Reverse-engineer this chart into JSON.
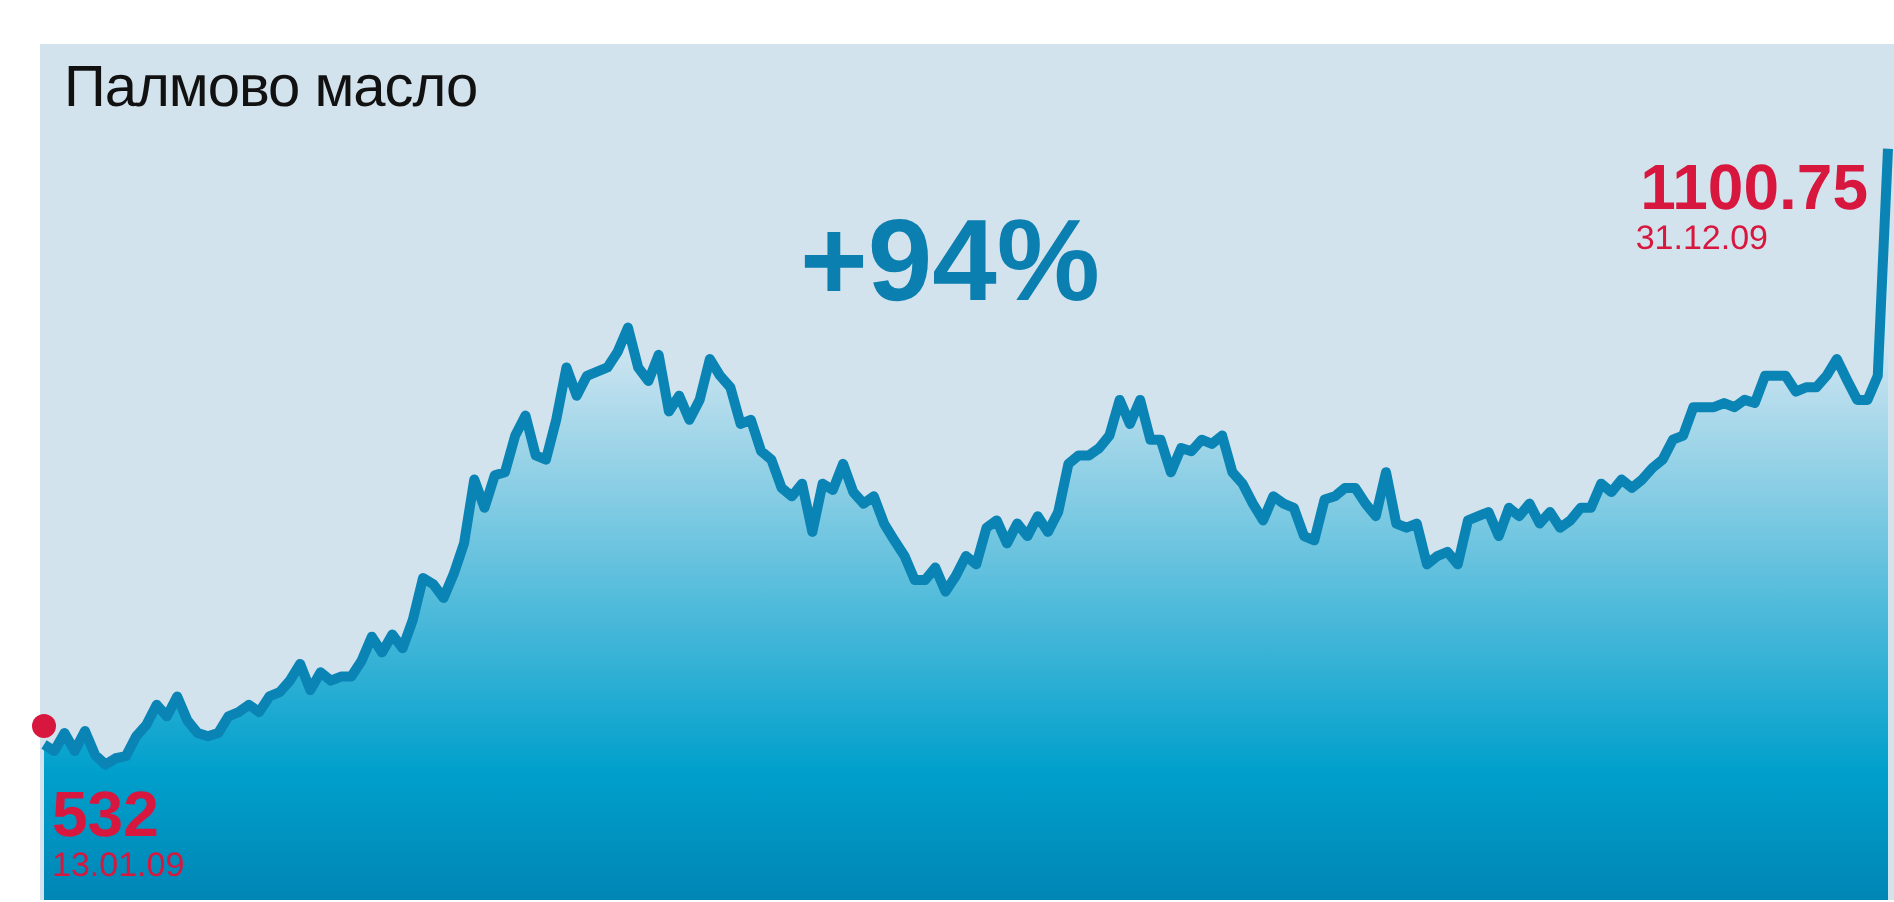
{
  "chart_data": {
    "type": "area",
    "title": "Палмово масло",
    "categories": [
      null,
      null,
      null,
      null,
      null,
      null,
      null,
      null,
      null,
      null,
      null,
      null,
      null,
      null,
      null,
      null,
      null,
      null,
      null,
      null,
      null,
      null,
      null,
      null,
      null,
      null,
      null,
      null,
      null,
      null,
      null,
      null,
      null,
      null,
      null,
      null,
      null,
      null,
      null,
      null,
      null,
      null,
      null,
      null,
      null,
      null,
      null,
      null,
      null,
      null,
      null,
      null,
      null,
      null,
      null,
      null,
      null,
      null,
      null,
      null,
      null,
      null,
      null,
      null,
      null,
      null,
      null,
      null,
      null,
      null,
      null,
      null,
      null,
      null,
      null,
      null,
      null,
      null,
      null,
      null,
      null,
      null,
      null,
      null,
      null,
      null,
      null,
      null,
      null,
      null,
      null,
      null,
      null,
      null,
      null,
      null,
      null,
      null,
      null,
      null,
      null,
      null,
      null,
      null,
      null,
      null,
      null,
      null,
      null,
      null,
      null,
      null,
      null,
      null,
      null,
      null,
      null,
      null,
      null,
      null,
      null,
      null,
      null,
      null,
      null,
      null,
      null,
      null,
      null,
      null,
      null,
      null,
      null,
      null,
      null,
      null,
      null,
      null,
      null,
      null,
      null,
      null,
      null,
      null,
      null,
      null,
      null,
      null,
      null,
      null,
      null,
      null,
      null,
      null,
      null,
      null,
      null,
      null,
      null,
      null,
      null,
      null,
      null,
      null,
      null,
      null,
      null,
      null,
      null,
      null,
      null,
      null,
      null,
      null,
      null,
      null,
      null,
      null,
      null,
      null,
      null
    ],
    "series": [
      {
        "color": "#0a84b5",
        "values": [
          532,
          526,
          543,
          526,
          545,
          522,
          513,
          519,
          521,
          540,
          551,
          570,
          559,
          578,
          555,
          543,
          540,
          543,
          559,
          563,
          570,
          563,
          578,
          582,
          593,
          609,
          584,
          601,
          593,
          597,
          597,
          612,
          635,
          620,
          637,
          624,
          651,
          691,
          685,
          672,
          695,
          724,
          785,
          758,
          789,
          792,
          827,
          846,
          808,
          804,
          842,
          892,
          865,
          884,
          888,
          892,
          907,
          930,
          892,
          879,
          904,
          850,
          865,
          842,
          861,
          900,
          884,
          873,
          838,
          842,
          812,
          804,
          777,
          769,
          781,
          735,
          781,
          775,
          800,
          773,
          762,
          769,
          743,
          727,
          712,
          689,
          689,
          701,
          678,
          693,
          712,
          704,
          739,
          746,
          724,
          743,
          731,
          750,
          735,
          754,
          800,
          808,
          808,
          815,
          827,
          861,
          838,
          861,
          823,
          823,
          792,
          815,
          812,
          823,
          819,
          827,
          792,
          781,
          762,
          746,
          769,
          762,
          758,
          731,
          727,
          766,
          769,
          777,
          777,
          762,
          750,
          792,
          743,
          739,
          743,
          704,
          712,
          716,
          704,
          746,
          750,
          754,
          731,
          758,
          750,
          762,
          743,
          754,
          739,
          746,
          758,
          758,
          781,
          773,
          785,
          777,
          785,
          796,
          804,
          823,
          827,
          854,
          854,
          854,
          858,
          854,
          861,
          858,
          884,
          884,
          884,
          869,
          873,
          873,
          884,
          900,
          880,
          861,
          861,
          884,
          1100.75
        ],
        "value_labels": [
          "532",
          null,
          null,
          null,
          null,
          null,
          null,
          null,
          null,
          null,
          null,
          null,
          null,
          null,
          null,
          null,
          null,
          null,
          null,
          null,
          null,
          null,
          null,
          null,
          null,
          null,
          null,
          null,
          null,
          null,
          null,
          null,
          null,
          null,
          null,
          null,
          null,
          null,
          null,
          null,
          null,
          null,
          null,
          null,
          null,
          null,
          null,
          null,
          null,
          null,
          null,
          null,
          null,
          null,
          null,
          null,
          null,
          null,
          null,
          null,
          null,
          null,
          null,
          null,
          null,
          null,
          null,
          null,
          null,
          null,
          null,
          null,
          null,
          null,
          null,
          null,
          null,
          null,
          null,
          null,
          null,
          null,
          null,
          null,
          null,
          null,
          null,
          null,
          null,
          null,
          null,
          null,
          null,
          null,
          null,
          null,
          null,
          null,
          null,
          null,
          null,
          null,
          null,
          null,
          null,
          null,
          null,
          null,
          null,
          null,
          null,
          null,
          null,
          null,
          null,
          null,
          null,
          null,
          null,
          null,
          null,
          null,
          null,
          null,
          null,
          null,
          null,
          null,
          null,
          null,
          null,
          null,
          null,
          null,
          null,
          null,
          null,
          null,
          null,
          null,
          null,
          null,
          null,
          null,
          null,
          null,
          null,
          null,
          null,
          null,
          null,
          null,
          null,
          null,
          null,
          null,
          null,
          null,
          null,
          null,
          null,
          null,
          null,
          null,
          null,
          null,
          null,
          null,
          null,
          null,
          null,
          null,
          null,
          null,
          null,
          null,
          null,
          null,
          null,
          null,
          "1100.75"
        ]
      }
    ],
    "tick_labels": false,
    "annotations": [
      "+94%",
      "13.01.09",
      "31.12.09"
    ]
  }
}
